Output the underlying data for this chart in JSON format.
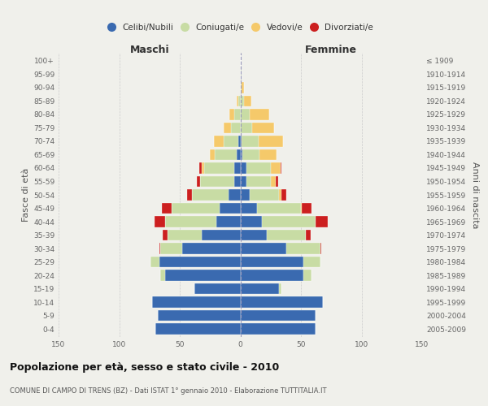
{
  "age_groups": [
    "0-4",
    "5-9",
    "10-14",
    "15-19",
    "20-24",
    "25-29",
    "30-34",
    "35-39",
    "40-44",
    "45-49",
    "50-54",
    "55-59",
    "60-64",
    "65-69",
    "70-74",
    "75-79",
    "80-84",
    "85-89",
    "90-94",
    "95-99",
    "100+"
  ],
  "birth_years": [
    "2005-2009",
    "2000-2004",
    "1995-1999",
    "1990-1994",
    "1985-1989",
    "1980-1984",
    "1975-1979",
    "1970-1974",
    "1965-1969",
    "1960-1964",
    "1955-1959",
    "1950-1954",
    "1945-1949",
    "1940-1944",
    "1935-1939",
    "1930-1934",
    "1925-1929",
    "1920-1924",
    "1915-1919",
    "1910-1914",
    "≤ 1909"
  ],
  "male_celibi": [
    70,
    68,
    73,
    38,
    62,
    67,
    48,
    32,
    20,
    17,
    10,
    5,
    5,
    3,
    2,
    0,
    0,
    0,
    0,
    0,
    0
  ],
  "male_coniugati": [
    0,
    0,
    0,
    0,
    4,
    7,
    18,
    28,
    42,
    40,
    30,
    28,
    25,
    18,
    12,
    8,
    5,
    2,
    0,
    0,
    0
  ],
  "male_vedovi": [
    0,
    0,
    0,
    0,
    0,
    0,
    0,
    0,
    0,
    0,
    0,
    0,
    2,
    4,
    8,
    6,
    4,
    1,
    0,
    0,
    0
  ],
  "male_divorziati": [
    0,
    0,
    0,
    0,
    0,
    0,
    1,
    4,
    9,
    8,
    4,
    3,
    2,
    0,
    0,
    0,
    0,
    0,
    0,
    0,
    0
  ],
  "female_nubili": [
    62,
    62,
    68,
    32,
    52,
    52,
    38,
    22,
    18,
    14,
    8,
    5,
    5,
    2,
    1,
    0,
    0,
    0,
    0,
    0,
    0
  ],
  "female_coniugate": [
    0,
    0,
    0,
    2,
    7,
    14,
    28,
    32,
    44,
    36,
    24,
    20,
    20,
    14,
    14,
    10,
    8,
    3,
    1,
    1,
    0
  ],
  "female_vedove": [
    0,
    0,
    0,
    0,
    0,
    0,
    0,
    0,
    0,
    1,
    2,
    4,
    8,
    14,
    20,
    18,
    16,
    6,
    2,
    0,
    0
  ],
  "female_divorziate": [
    0,
    0,
    0,
    0,
    0,
    0,
    1,
    4,
    10,
    8,
    4,
    2,
    1,
    0,
    0,
    0,
    0,
    0,
    0,
    0,
    0
  ],
  "color_celibi": "#3a6ab0",
  "color_coniugati": "#c8dca4",
  "color_vedovi": "#f5c96a",
  "color_divorziati": "#cc1f1f",
  "legend_labels": [
    "Celibi/Nubili",
    "Coniugati/e",
    "Vedovi/e",
    "Divorziati/e"
  ],
  "title": "Popolazione per età, sesso e stato civile - 2010",
  "subtitle": "COMUNE DI CAMPO DI TRENS (BZ) - Dati ISTAT 1° gennaio 2010 - Elaborazione TUTTITALIA.IT",
  "label_maschi": "Maschi",
  "label_femmine": "Femmine",
  "ylabel_left": "Fasce di età",
  "ylabel_right": "Anni di nascita",
  "xlim": 150,
  "bg_color": "#f0f0eb"
}
